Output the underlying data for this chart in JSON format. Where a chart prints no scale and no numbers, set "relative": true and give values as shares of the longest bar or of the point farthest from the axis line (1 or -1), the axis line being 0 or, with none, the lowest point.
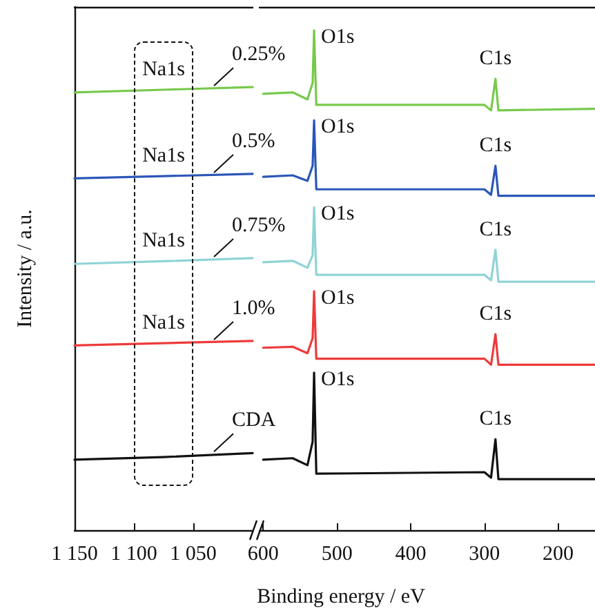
{
  "chart_data": [
    {
      "type": "line",
      "relative": true,
      "ylabel": "Intensity / a.u.",
      "x": [
        1150,
        1075,
        1000
      ],
      "xlim": [
        1150,
        1000
      ],
      "xticks": [
        {
          "value": 1150,
          "label": "1 150"
        },
        {
          "value": 1100,
          "label": "1 100"
        },
        {
          "value": 1050,
          "label": "1 050"
        }
      ],
      "series": [
        {
          "name": "0.25%",
          "color": "#77c94b",
          "values": [
            0.988,
            0.994,
            1.0
          ]
        },
        {
          "name": "0.5%",
          "color": "#2a56b8",
          "values": [
            0.794,
            0.799,
            0.804
          ]
        },
        {
          "name": "0.75%",
          "color": "#8fd3d6",
          "values": [
            0.601,
            0.607,
            0.614
          ]
        },
        {
          "name": "1.0%",
          "color": "#ee3a3a",
          "values": [
            0.417,
            0.422,
            0.427
          ]
        },
        {
          "name": "CDA",
          "color": "#111111",
          "values": [
            0.159,
            0.165,
            0.174
          ]
        }
      ],
      "annotations": [
        {
          "text": "Na1s",
          "x": 1075,
          "y": 0.994
        },
        {
          "text": "Na1s",
          "x": 1075,
          "y": 0.799
        },
        {
          "text": "Na1s",
          "x": 1075,
          "y": 0.607
        },
        {
          "text": "Na1s",
          "x": 1075,
          "y": 0.422
        }
      ],
      "legend": false,
      "grid": false,
      "marker": "none",
      "line_style": "solid"
    },
    {
      "type": "line",
      "relative": true,
      "xlabel": "Binding energy / eV",
      "x": [
        600,
        560,
        540,
        533,
        531,
        528,
        300,
        291,
        285,
        281,
        150
      ],
      "xlim": [
        605,
        150
      ],
      "xticks": [
        600,
        500,
        400,
        300,
        200
      ],
      "series": [
        {
          "color": "#77c94b",
          "values": [
            0.873,
            0.876,
            0.862,
            0.895,
            1.0,
            0.851,
            0.851,
            0.84,
            0.903,
            0.84,
            0.843
          ]
        },
        {
          "color": "#2a56b8",
          "values": [
            0.707,
            0.71,
            0.699,
            0.729,
            0.82,
            0.682,
            0.682,
            0.671,
            0.729,
            0.669,
            0.669
          ]
        },
        {
          "color": "#8fd3d6",
          "values": [
            0.536,
            0.539,
            0.525,
            0.55,
            0.646,
            0.511,
            0.511,
            0.5,
            0.561,
            0.497,
            0.497
          ]
        },
        {
          "color": "#ee3a3a",
          "values": [
            0.365,
            0.367,
            0.354,
            0.384,
            0.478,
            0.343,
            0.343,
            0.331,
            0.392,
            0.331,
            0.331
          ]
        },
        {
          "color": "#111111",
          "values": [
            0.141,
            0.144,
            0.13,
            0.177,
            0.315,
            0.113,
            0.116,
            0.105,
            0.182,
            0.102,
            0.102
          ]
        }
      ],
      "annotations": [
        {
          "text": "O1s",
          "x": 531,
          "y": 1.0
        },
        {
          "text": "O1s",
          "x": 531,
          "y": 0.82
        },
        {
          "text": "O1s",
          "x": 531,
          "y": 0.646
        },
        {
          "text": "O1s",
          "x": 531,
          "y": 0.478
        },
        {
          "text": "O1s",
          "x": 531,
          "y": 0.315
        },
        {
          "text": "C1s",
          "x": 285,
          "y": 0.903
        },
        {
          "text": "C1s",
          "x": 285,
          "y": 0.729
        },
        {
          "text": "C1s",
          "x": 285,
          "y": 0.561
        },
        {
          "text": "C1s",
          "x": 285,
          "y": 0.392
        },
        {
          "text": "C1s",
          "x": 285,
          "y": 0.182
        }
      ],
      "legend": false,
      "grid": false,
      "marker": "none",
      "line_style": "solid"
    }
  ]
}
